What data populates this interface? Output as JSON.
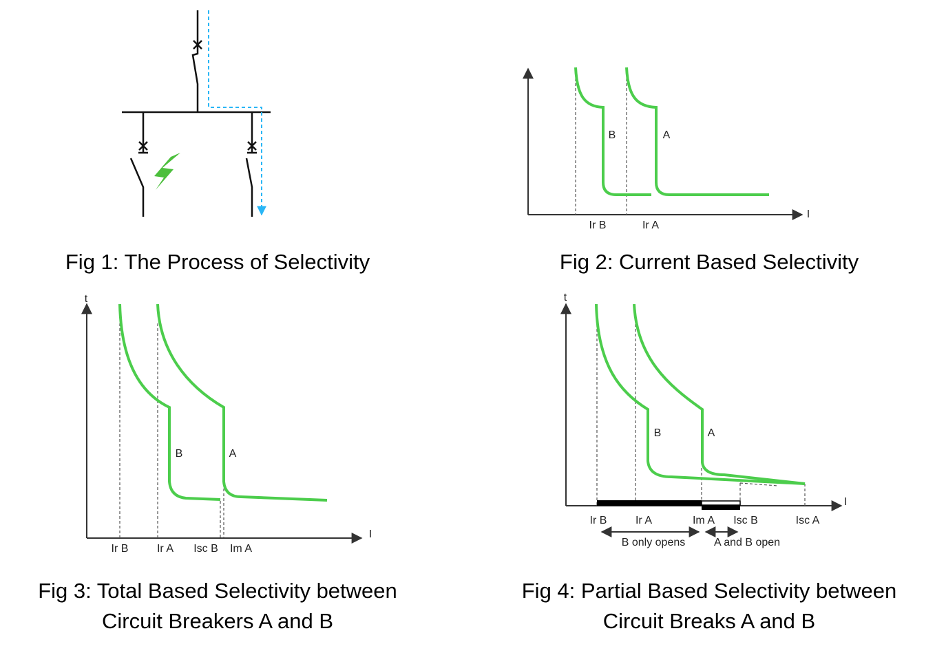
{
  "figures": [
    {
      "caption": [
        "Fig 1: The Process of Selectivity"
      ]
    },
    {
      "caption": [
        "Fig 2: Current Based Selectivity"
      ],
      "x_axis": "I",
      "curves": [
        "B",
        "A"
      ],
      "ticks": [
        "Ir B",
        "Ir A"
      ]
    },
    {
      "caption": [
        "Fig 3: Total Based Selectivity between",
        "Circuit Breakers A and B"
      ],
      "y_axis": "t",
      "x_axis": "I",
      "curves": [
        "B",
        "A"
      ],
      "ticks": [
        "Ir B",
        "Ir A",
        "Isc B",
        "Im A"
      ]
    },
    {
      "caption": [
        "Fig 4: Partial Based Selectivity between",
        "Circuit Breaks A and B"
      ],
      "y_axis": "t",
      "x_axis": "I",
      "curves": [
        "B",
        "A"
      ],
      "ticks": [
        "Ir B",
        "Ir A",
        "Im A",
        "Isc B",
        "Isc A"
      ],
      "ranges": [
        "B only opens",
        "A and B open"
      ]
    }
  ]
}
